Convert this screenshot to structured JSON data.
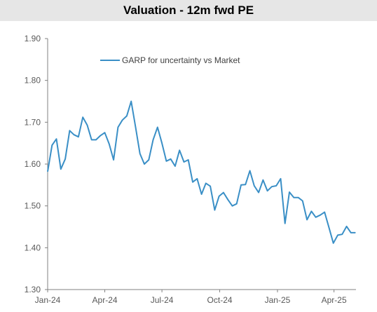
{
  "chart_data": {
    "type": "line",
    "title": "Valuation - 12m fwd PE",
    "ylim": [
      1.3,
      1.9
    ],
    "yticks": [
      "1.30",
      "1.40",
      "1.50",
      "1.60",
      "1.70",
      "1.80",
      "1.90"
    ],
    "xticks": [
      "Jan-24",
      "Apr-24",
      "Jul-24",
      "Oct-24",
      "Jan-25",
      "Apr-25"
    ],
    "grid": false,
    "legend_position": "top-left",
    "series": [
      {
        "name": "GARP for uncertainty vs Market",
        "color": "#3a8fc6",
        "x": [
          "2024-01-01",
          "2024-01-08",
          "2024-01-15",
          "2024-01-22",
          "2024-01-29",
          "2024-02-05",
          "2024-02-12",
          "2024-02-19",
          "2024-02-26",
          "2024-03-04",
          "2024-03-11",
          "2024-03-18",
          "2024-03-25",
          "2024-04-01",
          "2024-04-08",
          "2024-04-15",
          "2024-04-22",
          "2024-04-29",
          "2024-05-06",
          "2024-05-13",
          "2024-05-20",
          "2024-05-27",
          "2024-06-03",
          "2024-06-10",
          "2024-06-17",
          "2024-06-24",
          "2024-07-01",
          "2024-07-08",
          "2024-07-15",
          "2024-07-22",
          "2024-07-29",
          "2024-08-05",
          "2024-08-12",
          "2024-08-19",
          "2024-08-26",
          "2024-09-02",
          "2024-09-09",
          "2024-09-16",
          "2024-09-23",
          "2024-09-30",
          "2024-10-07",
          "2024-10-14",
          "2024-10-21",
          "2024-10-28",
          "2024-11-04",
          "2024-11-11",
          "2024-11-18",
          "2024-11-25",
          "2024-12-02",
          "2024-12-09",
          "2024-12-16",
          "2024-12-23",
          "2024-12-30",
          "2025-01-06",
          "2025-01-13",
          "2025-01-20",
          "2025-01-27",
          "2025-02-03",
          "2025-02-10",
          "2025-02-17",
          "2025-02-24",
          "2025-03-03",
          "2025-03-10",
          "2025-03-17",
          "2025-03-24",
          "2025-03-31",
          "2025-04-07",
          "2025-04-14",
          "2025-04-21",
          "2025-04-28",
          "2025-05-05"
        ],
        "values": [
          1.582,
          1.645,
          1.66,
          1.588,
          1.612,
          1.68,
          1.67,
          1.665,
          1.712,
          1.693,
          1.658,
          1.658,
          1.668,
          1.675,
          1.648,
          1.61,
          1.688,
          1.705,
          1.715,
          1.75,
          1.688,
          1.625,
          1.6,
          1.61,
          1.658,
          1.688,
          1.65,
          1.607,
          1.612,
          1.595,
          1.633,
          1.605,
          1.61,
          1.557,
          1.565,
          1.528,
          1.554,
          1.547,
          1.49,
          1.523,
          1.532,
          1.515,
          1.5,
          1.505,
          1.55,
          1.551,
          1.584,
          1.548,
          1.532,
          1.562,
          1.536,
          1.546,
          1.548,
          1.565,
          1.458,
          1.533,
          1.52,
          1.52,
          1.512,
          1.467,
          1.487,
          1.473,
          1.478,
          1.485,
          1.448,
          1.411,
          1.43,
          1.432,
          1.451,
          1.436,
          1.436
        ]
      }
    ]
  }
}
